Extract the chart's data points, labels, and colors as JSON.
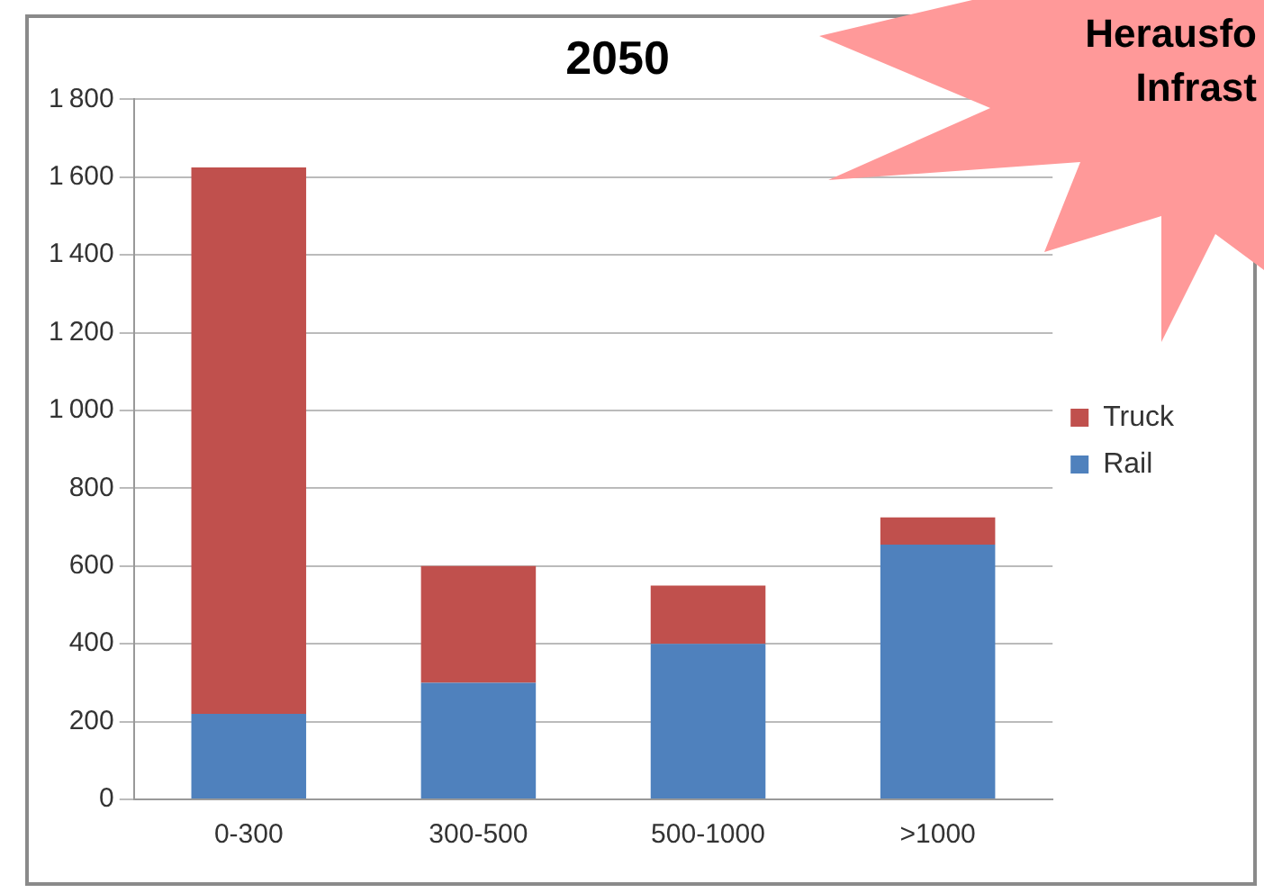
{
  "chart_data": {
    "type": "bar",
    "title": "2050",
    "stacked": true,
    "categories": [
      "0-300",
      "300-500",
      "500-1000",
      ">1000"
    ],
    "series": [
      {
        "name": "Rail",
        "color": "#4f81bd",
        "values": [
          220,
          300,
          400,
          655
        ]
      },
      {
        "name": "Truck",
        "color": "#c0504d",
        "values": [
          1405,
          300,
          150,
          70
        ]
      }
    ],
    "ylim": [
      0,
      1800
    ],
    "yticks": [
      0,
      200,
      400,
      600,
      800,
      1000,
      1200,
      1400,
      1600,
      1800
    ],
    "grid": "y",
    "legend": "right",
    "annotations": [
      "Herausfo",
      "Infrast"
    ]
  }
}
